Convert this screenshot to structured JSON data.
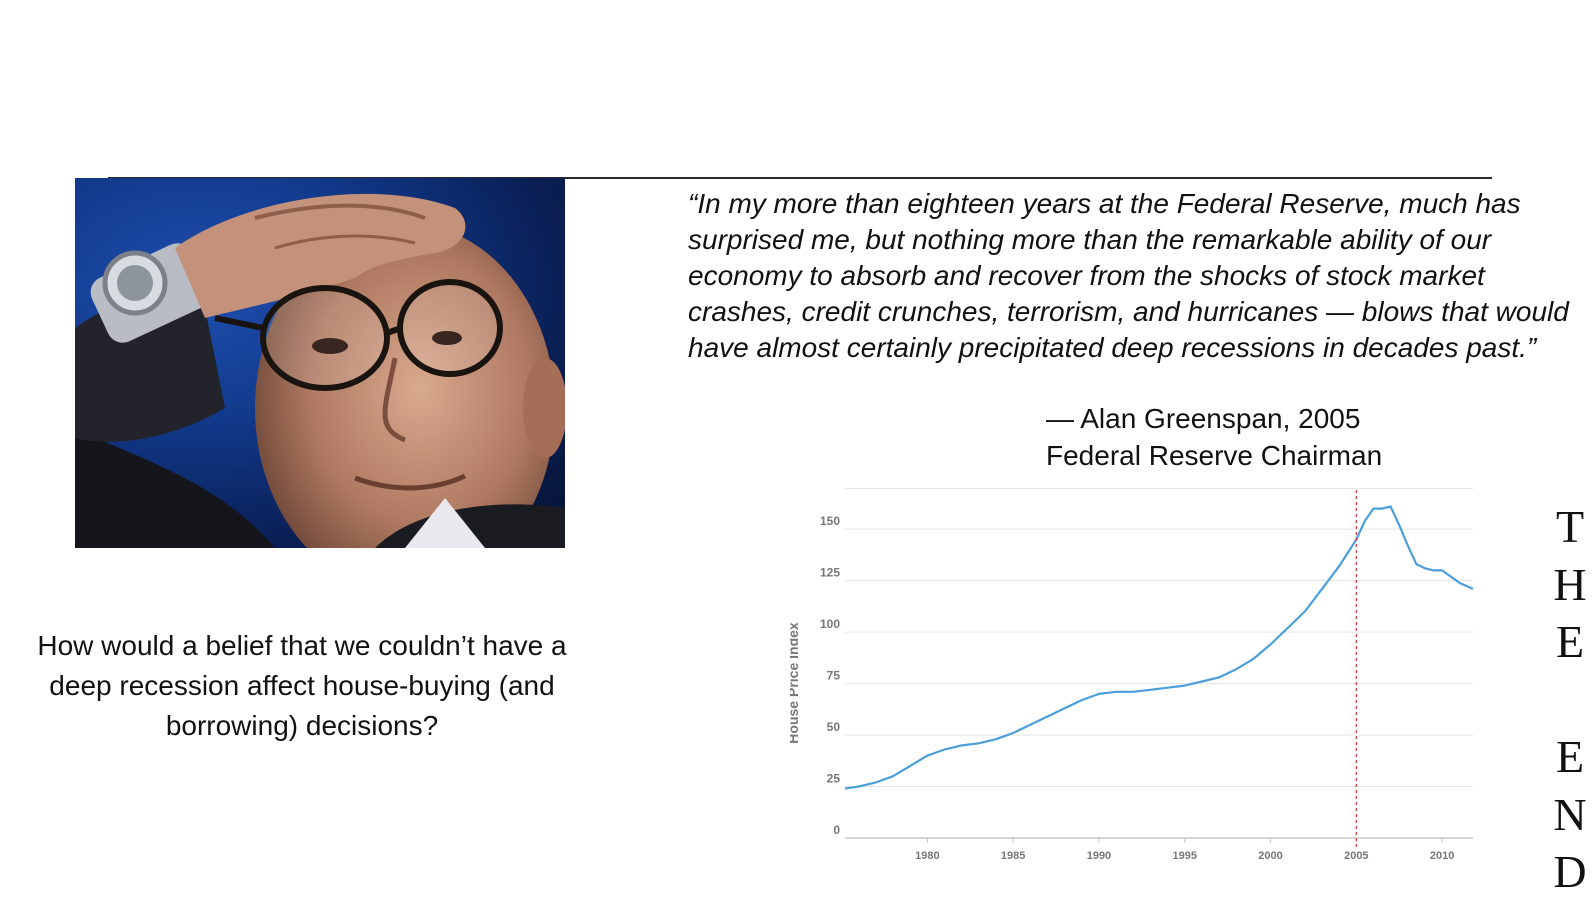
{
  "quote": {
    "text": "“In my more than eighteen years at the Federal Reserve, much has surprised me, but nothing more than the remarkable ability of our economy to absorb and recover from the shocks of stock market crashes, credit crunches, terrorism, and hurricanes — blows that would have almost certainly precipitated deep recessions in decades past.”",
    "attribution_line1": "— Alan Greenspan, 2005",
    "attribution_line2": "Federal Reserve Chairman"
  },
  "question": "How would a belief that we couldn’t have a deep recession affect house-buying (and borrowing) decisions?",
  "the_end_letters": [
    "T",
    "H",
    "E",
    "",
    "E",
    "N",
    "D"
  ],
  "photo_alt": "man with hand on forehead",
  "chart_data": {
    "type": "line",
    "title": "",
    "xlabel": "",
    "ylabel": "House Price Index",
    "xlim": [
      1975.2,
      2011.8
    ],
    "ylim": [
      0,
      170
    ],
    "yticks": [
      0,
      25,
      50,
      75,
      100,
      125,
      150
    ],
    "xticks": [
      1980,
      1985,
      1990,
      1995,
      2000,
      2005,
      2010
    ],
    "grid": true,
    "line_color": "#4a9fdb",
    "marker_line": {
      "x": 2005,
      "color": "#e0393e",
      "style": "dashed"
    },
    "series": [
      {
        "name": "",
        "x": [
          1975.2,
          1976,
          1977,
          1978,
          1979,
          1980,
          1981,
          1982,
          1983,
          1984,
          1985,
          1986,
          1987,
          1988,
          1989,
          1990,
          1991,
          1992,
          1993,
          1994,
          1995,
          1996,
          1997,
          1998,
          1999,
          2000,
          2001,
          2002,
          2003,
          2004,
          2005,
          2005.5,
          2006,
          2006.5,
          2007,
          2007.5,
          2008,
          2008.5,
          2009,
          2009.5,
          2010,
          2010.5,
          2011,
          2011.8
        ],
        "y": [
          24,
          25,
          27,
          30,
          35,
          40,
          43,
          45,
          46,
          48,
          51,
          55,
          59,
          63,
          67,
          70,
          71,
          71,
          72,
          73,
          74,
          76,
          78,
          82,
          87,
          94,
          102,
          110,
          121,
          132,
          145,
          154,
          160,
          160,
          161,
          152,
          142,
          133,
          131,
          130,
          130,
          127,
          124,
          121
        ]
      }
    ]
  }
}
